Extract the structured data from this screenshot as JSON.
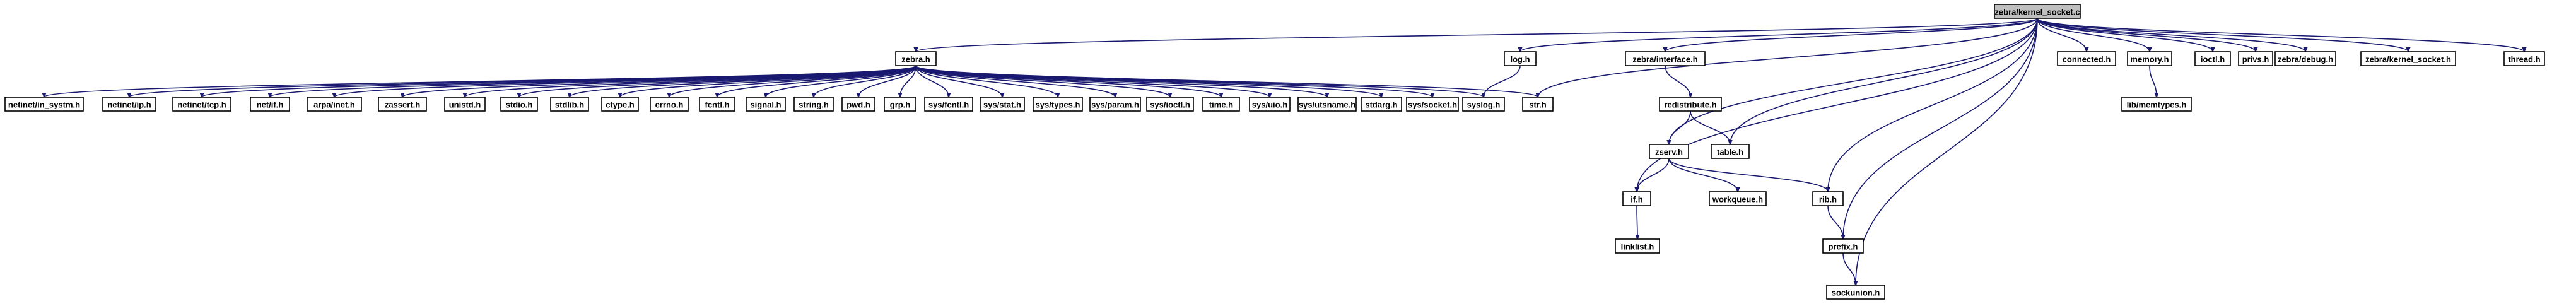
{
  "root": "zebra/kernel_socket.c",
  "nodes": [
    {
      "id": "root",
      "label": "zebra/kernel_socket.c"
    },
    {
      "id": "zebra_h",
      "label": "zebra.h"
    },
    {
      "id": "netinet_in_systm",
      "label": "netinet/in_systm.h"
    },
    {
      "id": "netinet_ip",
      "label": "netinet/ip.h"
    },
    {
      "id": "netinet_tcp",
      "label": "netinet/tcp.h"
    },
    {
      "id": "net_if",
      "label": "net/if.h"
    },
    {
      "id": "arpa_inet",
      "label": "arpa/inet.h"
    },
    {
      "id": "zassert",
      "label": "zassert.h"
    },
    {
      "id": "unistd",
      "label": "unistd.h"
    },
    {
      "id": "stdio",
      "label": "stdio.h"
    },
    {
      "id": "stdlib",
      "label": "stdlib.h"
    },
    {
      "id": "ctype",
      "label": "ctype.h"
    },
    {
      "id": "errno",
      "label": "errno.h"
    },
    {
      "id": "fcntl",
      "label": "fcntl.h"
    },
    {
      "id": "signal",
      "label": "signal.h"
    },
    {
      "id": "string",
      "label": "string.h"
    },
    {
      "id": "pwd",
      "label": "pwd.h"
    },
    {
      "id": "grp",
      "label": "grp.h"
    },
    {
      "id": "sys_fcntl",
      "label": "sys/fcntl.h"
    },
    {
      "id": "sys_stat",
      "label": "sys/stat.h"
    },
    {
      "id": "sys_types",
      "label": "sys/types.h"
    },
    {
      "id": "sys_param",
      "label": "sys/param.h"
    },
    {
      "id": "sys_ioctl",
      "label": "sys/ioctl.h"
    },
    {
      "id": "time_h",
      "label": "time.h"
    },
    {
      "id": "sys_uio",
      "label": "sys/uio.h"
    },
    {
      "id": "sys_utsname",
      "label": "sys/utsname.h"
    },
    {
      "id": "stdarg",
      "label": "stdarg.h"
    },
    {
      "id": "sys_socket",
      "label": "sys/socket.h"
    },
    {
      "id": "syslog",
      "label": "syslog.h"
    },
    {
      "id": "str_h",
      "label": "str.h"
    },
    {
      "id": "log_h",
      "label": "log.h"
    },
    {
      "id": "zebra_interface",
      "label": "zebra/interface.h"
    },
    {
      "id": "redistribute",
      "label": "redistribute.h"
    },
    {
      "id": "table_h",
      "label": "table.h"
    },
    {
      "id": "zserv",
      "label": "zserv.h"
    },
    {
      "id": "if_h",
      "label": "if.h"
    },
    {
      "id": "workqueue",
      "label": "workqueue.h"
    },
    {
      "id": "rib_h",
      "label": "rib.h"
    },
    {
      "id": "linklist",
      "label": "linklist.h"
    },
    {
      "id": "prefix_h",
      "label": "prefix.h"
    },
    {
      "id": "sockunion",
      "label": "sockunion.h"
    },
    {
      "id": "connected",
      "label": "connected.h"
    },
    {
      "id": "memory_h",
      "label": "memory.h"
    },
    {
      "id": "lib_memtypes",
      "label": "lib/memtypes.h"
    },
    {
      "id": "ioctl_h",
      "label": "ioctl.h"
    },
    {
      "id": "privs",
      "label": "privs.h"
    },
    {
      "id": "zebra_debug",
      "label": "zebra/debug.h"
    },
    {
      "id": "zebra_kernel_socket",
      "label": "zebra/kernel_socket.h"
    },
    {
      "id": "thread_h",
      "label": "thread.h"
    }
  ],
  "edges": [
    [
      "root",
      "zebra_h"
    ],
    [
      "root",
      "log_h"
    ],
    [
      "root",
      "str_h"
    ],
    [
      "root",
      "zebra_interface"
    ],
    [
      "root",
      "if_h"
    ],
    [
      "root",
      "zserv"
    ],
    [
      "root",
      "table_h"
    ],
    [
      "root",
      "rib_h"
    ],
    [
      "root",
      "prefix_h"
    ],
    [
      "root",
      "sockunion"
    ],
    [
      "root",
      "connected"
    ],
    [
      "root",
      "memory_h"
    ],
    [
      "root",
      "ioctl_h"
    ],
    [
      "root",
      "privs"
    ],
    [
      "root",
      "zebra_debug"
    ],
    [
      "root",
      "zebra_kernel_socket"
    ],
    [
      "root",
      "thread_h"
    ],
    [
      "zebra_h",
      "netinet_in_systm"
    ],
    [
      "zebra_h",
      "netinet_ip"
    ],
    [
      "zebra_h",
      "netinet_tcp"
    ],
    [
      "zebra_h",
      "net_if"
    ],
    [
      "zebra_h",
      "arpa_inet"
    ],
    [
      "zebra_h",
      "zassert"
    ],
    [
      "zebra_h",
      "unistd"
    ],
    [
      "zebra_h",
      "stdio"
    ],
    [
      "zebra_h",
      "stdlib"
    ],
    [
      "zebra_h",
      "ctype"
    ],
    [
      "zebra_h",
      "errno"
    ],
    [
      "zebra_h",
      "fcntl"
    ],
    [
      "zebra_h",
      "signal"
    ],
    [
      "zebra_h",
      "string"
    ],
    [
      "zebra_h",
      "pwd"
    ],
    [
      "zebra_h",
      "grp"
    ],
    [
      "zebra_h",
      "sys_fcntl"
    ],
    [
      "zebra_h",
      "sys_stat"
    ],
    [
      "zebra_h",
      "sys_types"
    ],
    [
      "zebra_h",
      "sys_param"
    ],
    [
      "zebra_h",
      "sys_ioctl"
    ],
    [
      "zebra_h",
      "time_h"
    ],
    [
      "zebra_h",
      "sys_uio"
    ],
    [
      "zebra_h",
      "sys_utsname"
    ],
    [
      "zebra_h",
      "stdarg"
    ],
    [
      "zebra_h",
      "sys_socket"
    ],
    [
      "zebra_h",
      "syslog"
    ],
    [
      "zebra_h",
      "str_h"
    ],
    [
      "log_h",
      "syslog"
    ],
    [
      "zebra_interface",
      "redistribute"
    ],
    [
      "redistribute",
      "table_h"
    ],
    [
      "redistribute",
      "zserv"
    ],
    [
      "zserv",
      "if_h"
    ],
    [
      "zserv",
      "workqueue"
    ],
    [
      "zserv",
      "rib_h"
    ],
    [
      "if_h",
      "linklist"
    ],
    [
      "rib_h",
      "prefix_h"
    ],
    [
      "prefix_h",
      "sockunion"
    ],
    [
      "memory_h",
      "lib_memtypes"
    ]
  ]
}
